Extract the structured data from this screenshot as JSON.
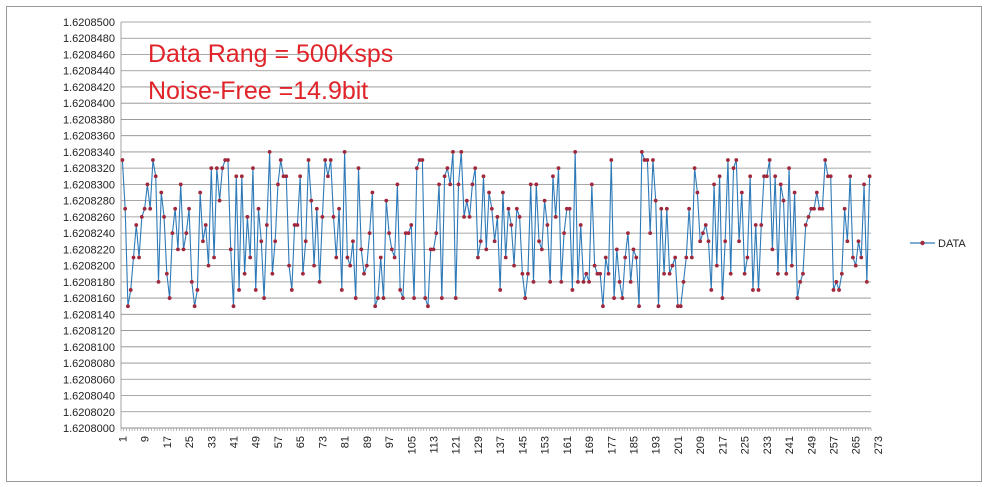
{
  "chart_data": {
    "type": "line",
    "title": "",
    "xlabel": "",
    "ylabel": "",
    "ylim": [
      1.6208,
      1.62085
    ],
    "y_tick_step": 2e-06,
    "y_tick_decimals": 7,
    "xlim": [
      1,
      280
    ],
    "x_tick_labels": [
      "1",
      "9",
      "17",
      "25",
      "33",
      "41",
      "49",
      "57",
      "65",
      "73",
      "81",
      "89",
      "97",
      "105",
      "113",
      "121",
      "129",
      "137",
      "145",
      "153",
      "161",
      "169",
      "177",
      "185",
      "193",
      "201",
      "209",
      "217",
      "225",
      "233",
      "241",
      "249",
      "257",
      "265",
      "273"
    ],
    "x_tick_every": 4,
    "grid": {
      "horizontal": true,
      "vertical": false
    },
    "legend": {
      "position": "right",
      "entries": [
        "DATA"
      ]
    },
    "annotations": [
      "Data Rang = 500Ksps",
      "Noise-Free =14.9bit"
    ],
    "series": [
      {
        "name": "DATA",
        "color": "#2e7ab8",
        "marker_color": "#a0283c",
        "values": [
          1.620833,
          1.620827,
          1.620815,
          1.620817,
          1.620821,
          1.620825,
          1.620821,
          1.620826,
          1.620827,
          1.62083,
          1.620827,
          1.620833,
          1.620831,
          1.620818,
          1.620829,
          1.620826,
          1.620819,
          1.620816,
          1.620824,
          1.620827,
          1.620822,
          1.62083,
          1.620822,
          1.620824,
          1.620827,
          1.620818,
          1.620815,
          1.620817,
          1.620829,
          1.620823,
          1.620825,
          1.62082,
          1.620832,
          1.620821,
          1.620832,
          1.620828,
          1.620832,
          1.620833,
          1.620833,
          1.620822,
          1.620815,
          1.620831,
          1.620817,
          1.620831,
          1.620819,
          1.620826,
          1.620821,
          1.620832,
          1.620817,
          1.620827,
          1.620823,
          1.620816,
          1.620825,
          1.620834,
          1.620819,
          1.620823,
          1.62083,
          1.620833,
          1.620831,
          1.620831,
          1.62082,
          1.620817,
          1.620825,
          1.620825,
          1.620831,
          1.620819,
          1.620823,
          1.620833,
          1.620828,
          1.62082,
          1.620827,
          1.620818,
          1.620826,
          1.620833,
          1.620831,
          1.620833,
          1.620826,
          1.620821,
          1.620827,
          1.620817,
          1.620834,
          1.620821,
          1.62082,
          1.620823,
          1.620816,
          1.620832,
          1.620822,
          1.620819,
          1.62082,
          1.620824,
          1.620829,
          1.620815,
          1.620816,
          1.620821,
          1.620816,
          1.620828,
          1.620824,
          1.620822,
          1.620821,
          1.62083,
          1.620817,
          1.620816,
          1.620824,
          1.620824,
          1.620825,
          1.620816,
          1.620832,
          1.620833,
          1.620833,
          1.620816,
          1.620815,
          1.620822,
          1.620822,
          1.620824,
          1.62083,
          1.620816,
          1.620831,
          1.620832,
          1.62083,
          1.620834,
          1.620816,
          1.62083,
          1.620834,
          1.620826,
          1.620828,
          1.620826,
          1.62083,
          1.620832,
          1.620821,
          1.620823,
          1.620831,
          1.620822,
          1.620829,
          1.620827,
          1.620823,
          1.620826,
          1.620817,
          1.620829,
          1.620821,
          1.620827,
          1.620825,
          1.62082,
          1.620827,
          1.620826,
          1.620819,
          1.620816,
          1.620819,
          1.62083,
          1.620818,
          1.62083,
          1.620823,
          1.620822,
          1.620828,
          1.620825,
          1.620818,
          1.620831,
          1.620826,
          1.620832,
          1.620818,
          1.620824,
          1.620827,
          1.620827,
          1.620817,
          1.620834,
          1.620818,
          1.620825,
          1.620818,
          1.620819,
          1.620818,
          1.62083,
          1.62082,
          1.620819,
          1.620819,
          1.620815,
          1.620821,
          1.620819,
          1.620833,
          1.620816,
          1.620822,
          1.620818,
          1.620816,
          1.620821,
          1.620824,
          1.620818,
          1.620822,
          1.620821,
          1.620815,
          1.620834,
          1.620833,
          1.620833,
          1.620824,
          1.620833,
          1.620828,
          1.620815,
          1.620827,
          1.620819,
          1.620827,
          1.620819,
          1.62082,
          1.620821,
          1.620815,
          1.620815,
          1.620818,
          1.620821,
          1.620827,
          1.620821,
          1.620832,
          1.620829,
          1.620823,
          1.620824,
          1.620825,
          1.620823,
          1.620817,
          1.62083,
          1.62082,
          1.620831,
          1.620816,
          1.620823,
          1.620833,
          1.620819,
          1.620832,
          1.620833,
          1.620823,
          1.620829,
          1.620819,
          1.620821,
          1.620831,
          1.620817,
          1.620825,
          1.620817,
          1.620825,
          1.620831,
          1.620831,
          1.620833,
          1.620822,
          1.620831,
          1.620819,
          1.62083,
          1.620828,
          1.620819,
          1.620832,
          1.62082,
          1.620829,
          1.620816,
          1.620818,
          1.620819,
          1.620825,
          1.620826,
          1.620827,
          1.620827,
          1.620829,
          1.620827,
          1.620827,
          1.620833,
          1.620831,
          1.620831,
          1.620817,
          1.620818,
          1.620817,
          1.620819,
          1.620827,
          1.620823,
          1.620831,
          1.620821,
          1.62082,
          1.620823,
          1.620821,
          1.62083,
          1.620818,
          1.620831
        ]
      }
    ]
  }
}
